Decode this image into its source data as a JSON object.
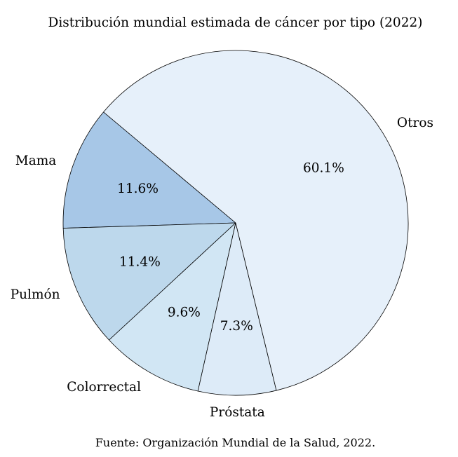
{
  "chart_data": {
    "type": "pie",
    "title": "Distribución mundial estimada de cáncer por tipo (2022)",
    "source": "Fuente: Organización Mundial de la Salud, 2022.",
    "slices": [
      {
        "label": "Mama",
        "value": 11.6,
        "pct_label": "11.6%",
        "color": "#a7c7e7"
      },
      {
        "label": "Pulmón",
        "value": 11.4,
        "pct_label": "11.4%",
        "color": "#bdd8ec"
      },
      {
        "label": "Colorrectal",
        "value": 9.6,
        "pct_label": "9.6%",
        "color": "#d1e6f4"
      },
      {
        "label": "Próstata",
        "value": 7.3,
        "pct_label": "7.3%",
        "color": "#ddebf8"
      },
      {
        "label": "Otros",
        "value": 60.1,
        "pct_label": "60.1%",
        "color": "#e6f0fa"
      }
    ],
    "edge_color": "#000000",
    "direction": "counterclockwise",
    "legend": "none"
  }
}
